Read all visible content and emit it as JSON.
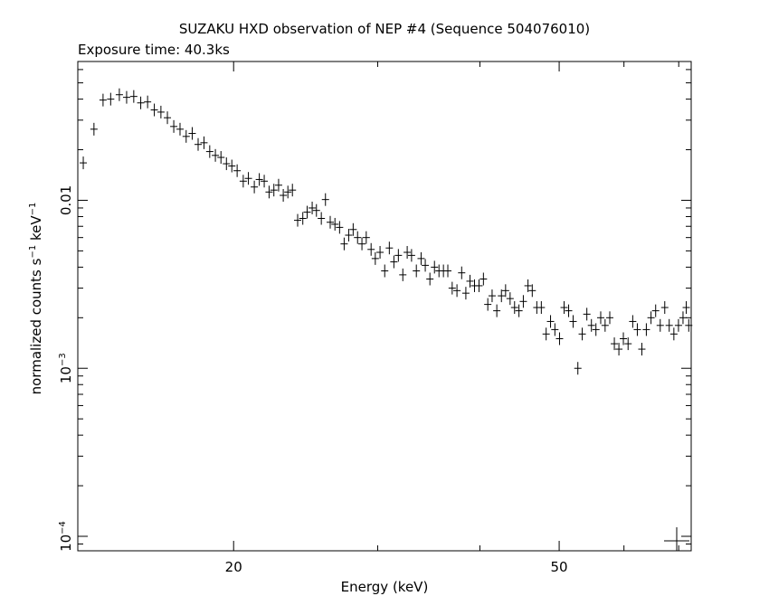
{
  "chart_data": {
    "type": "scatter",
    "title": "SUZAKU HXD observation of NEP #4 (Sequence 504076010)",
    "subtitle": "Exposure time: 40.3ks",
    "xlabel": "Energy (keV)",
    "ylabel": {
      "prefix": "normalized counts s",
      "sup1": "−1",
      "middle": " keV",
      "sup2": "−1"
    },
    "x_scale": "log",
    "y_scale": "log",
    "xlim": [
      12.9,
      72.5
    ],
    "ylim": [
      8.2e-05,
      0.067
    ],
    "x_ticks_labeled": [
      20,
      50
    ],
    "y_ticks_labeled": [
      {
        "value": 0.0001,
        "base": "10",
        "exp": "−4"
      },
      {
        "value": 0.001,
        "base": "10",
        "exp": "−3"
      },
      {
        "value": 0.01,
        "base": "0.01",
        "exp": ""
      }
    ],
    "series": [
      {
        "points": [
          [
            13.1,
            0.0167
          ],
          [
            13.5,
            0.0265
          ],
          [
            13.85,
            0.0395
          ],
          [
            14.15,
            0.04
          ],
          [
            14.5,
            0.0425
          ],
          [
            14.8,
            0.041
          ],
          [
            15.1,
            0.0415
          ],
          [
            15.4,
            0.038
          ],
          [
            15.7,
            0.0385
          ],
          [
            16.0,
            0.0345
          ],
          [
            16.3,
            0.0335
          ],
          [
            16.6,
            0.031
          ],
          [
            16.9,
            0.0275
          ],
          [
            17.2,
            0.0265
          ],
          [
            17.5,
            0.024
          ],
          [
            17.8,
            0.025
          ],
          [
            18.1,
            0.0215
          ],
          [
            18.4,
            0.022
          ],
          [
            18.7,
            0.0195
          ],
          [
            19.0,
            0.0185
          ],
          [
            19.3,
            0.018
          ],
          [
            19.6,
            0.0165
          ],
          [
            19.9,
            0.016
          ],
          [
            20.2,
            0.015
          ],
          [
            20.55,
            0.013
          ],
          [
            20.85,
            0.0135
          ],
          [
            21.2,
            0.012
          ],
          [
            21.5,
            0.0133
          ],
          [
            21.8,
            0.013
          ],
          [
            22.1,
            0.0112
          ],
          [
            22.4,
            0.0115
          ],
          [
            22.7,
            0.0123
          ],
          [
            23.0,
            0.0107
          ],
          [
            23.3,
            0.0112
          ],
          [
            23.6,
            0.0115
          ],
          [
            23.95,
            0.0076
          ],
          [
            24.3,
            0.0078
          ],
          [
            24.6,
            0.0085
          ],
          [
            24.95,
            0.009
          ],
          [
            25.25,
            0.0087
          ],
          [
            25.6,
            0.0078
          ],
          [
            25.9,
            0.0101
          ],
          [
            26.25,
            0.0074
          ],
          [
            26.6,
            0.0072
          ],
          [
            26.95,
            0.0069
          ],
          [
            27.3,
            0.0055
          ],
          [
            27.65,
            0.0062
          ],
          [
            28.0,
            0.0067
          ],
          [
            28.35,
            0.006
          ],
          [
            28.7,
            0.0055
          ],
          [
            29.05,
            0.006
          ],
          [
            29.45,
            0.0051
          ],
          [
            29.8,
            0.0045
          ],
          [
            30.2,
            0.0049
          ],
          [
            30.6,
            0.0038
          ],
          [
            31.0,
            0.0052
          ],
          [
            31.4,
            0.0043
          ],
          [
            31.8,
            0.0047
          ],
          [
            32.2,
            0.0036
          ],
          [
            32.6,
            0.0049
          ],
          [
            33.0,
            0.0047
          ],
          [
            33.45,
            0.0038
          ],
          [
            33.9,
            0.0045
          ],
          [
            34.3,
            0.0041
          ],
          [
            34.75,
            0.0034
          ],
          [
            35.2,
            0.004
          ],
          [
            35.65,
            0.0038
          ],
          [
            36.1,
            0.0038
          ],
          [
            36.55,
            0.0038
          ],
          [
            37.0,
            0.003
          ],
          [
            37.5,
            0.0029
          ],
          [
            38.0,
            0.0037
          ],
          [
            38.45,
            0.0028
          ],
          [
            38.9,
            0.0033
          ],
          [
            39.4,
            0.0031
          ],
          [
            39.9,
            0.0031
          ],
          [
            40.4,
            0.0034
          ],
          [
            40.9,
            0.0024
          ],
          [
            41.4,
            0.0027
          ],
          [
            41.95,
            0.0022
          ],
          [
            42.5,
            0.0027
          ],
          [
            43.0,
            0.0029
          ],
          [
            43.55,
            0.0026
          ],
          [
            44.1,
            0.0023
          ],
          [
            44.65,
            0.0022
          ],
          [
            45.2,
            0.0025
          ],
          [
            45.8,
            0.0031
          ],
          [
            46.35,
            0.0029
          ],
          [
            46.95,
            0.0023
          ],
          [
            47.55,
            0.0023
          ],
          [
            48.2,
            0.0016
          ],
          [
            48.8,
            0.0019
          ],
          [
            49.4,
            0.0017
          ],
          [
            50.05,
            0.0015
          ],
          [
            50.7,
            0.0023
          ],
          [
            51.35,
            0.0022
          ],
          [
            52.0,
            0.0019
          ],
          [
            52.7,
            0.001
          ],
          [
            53.35,
            0.0016
          ],
          [
            54.05,
            0.0021
          ],
          [
            54.75,
            0.0018
          ],
          [
            55.45,
            0.0017
          ],
          [
            56.2,
            0.002
          ],
          [
            56.9,
            0.0018
          ],
          [
            57.65,
            0.002
          ],
          [
            58.4,
            0.0014
          ],
          [
            59.15,
            0.0013
          ],
          [
            59.9,
            0.0015
          ],
          [
            60.7,
            0.0014
          ],
          [
            61.5,
            0.0019
          ],
          [
            62.3,
            0.0017
          ],
          [
            63.1,
            0.0013
          ],
          [
            63.9,
            0.0017
          ],
          [
            64.75,
            0.002
          ],
          [
            65.6,
            0.0022
          ],
          [
            66.45,
            0.0018
          ],
          [
            67.3,
            0.0023
          ],
          [
            68.15,
            0.0018
          ],
          [
            69.05,
            0.0016
          ],
          [
            69.95,
            0.0018
          ],
          [
            70.85,
            0.002
          ],
          [
            71.5,
            0.0023
          ],
          [
            72.0,
            0.0018
          ]
        ]
      }
    ]
  }
}
